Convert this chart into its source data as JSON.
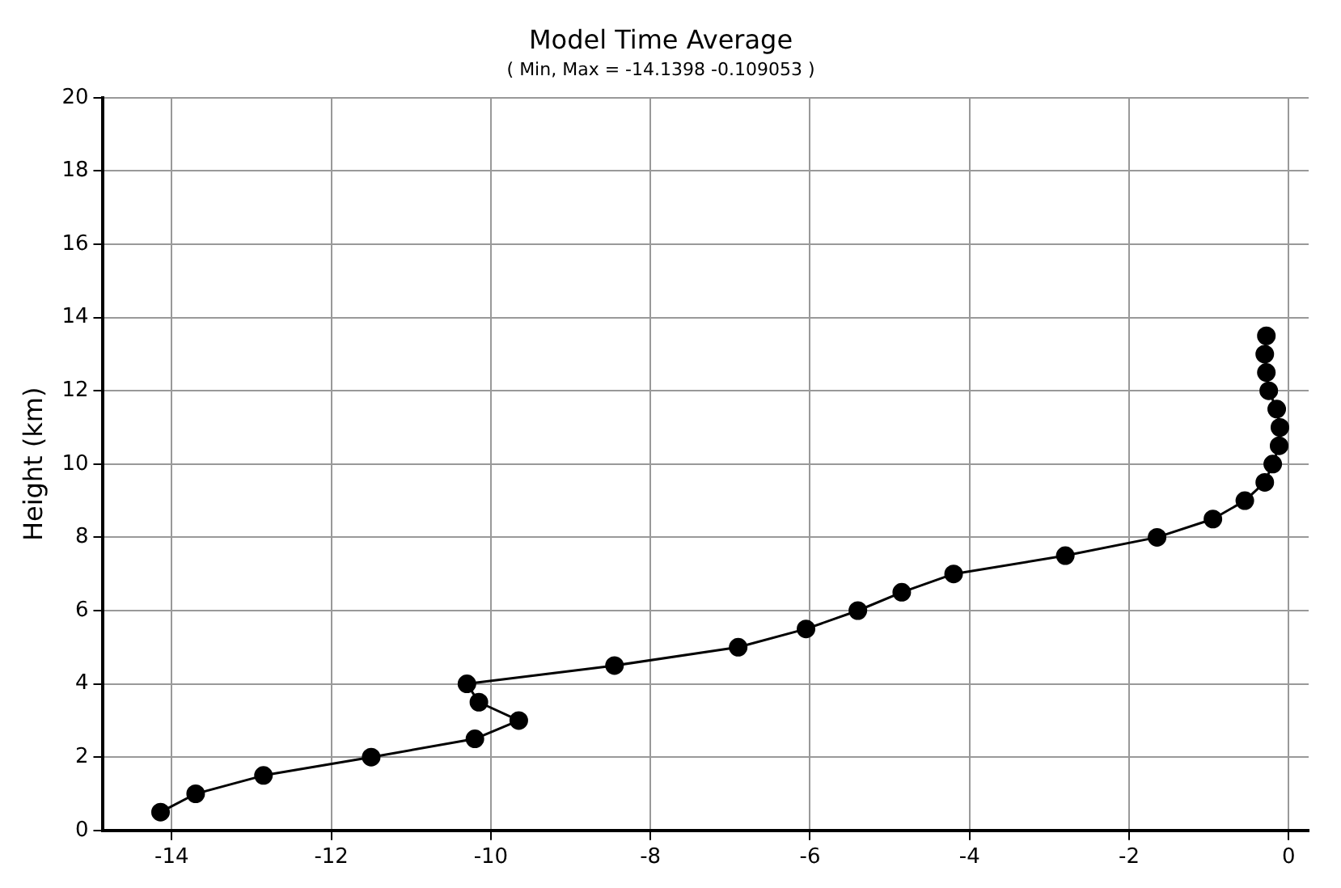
{
  "chart_data": {
    "type": "line",
    "title": "Model Time Average",
    "subtitle": "( Min, Max = -14.1398 -0.109053 )",
    "ylabel": "Height (km)",
    "x": [
      -14.14,
      -13.7,
      -12.85,
      -11.5,
      -10.2,
      -9.65,
      -10.15,
      -10.3,
      -8.45,
      -6.9,
      -6.05,
      -5.4,
      -4.85,
      -4.2,
      -2.8,
      -1.65,
      -0.95,
      -0.55,
      -0.3,
      -0.2,
      -0.12,
      -0.11,
      -0.15,
      -0.25,
      -0.28,
      -0.3,
      -0.28
    ],
    "series": [
      {
        "color": "#000000",
        "values": [
          0.5,
          1,
          1.5,
          2,
          2.5,
          3,
          3.5,
          4,
          4.5,
          5,
          5.5,
          6,
          6.5,
          7,
          7.5,
          8,
          8.5,
          9,
          9.5,
          10,
          10.5,
          11,
          11.5,
          12,
          12.5,
          13,
          13.5
        ]
      }
    ],
    "xlim": [
      -14.86,
      0.25
    ],
    "xticks": [
      -14,
      -12,
      -10,
      -8,
      -6,
      -4,
      -2,
      0
    ],
    "ylim": [
      0,
      20
    ],
    "yticks": [
      0,
      2,
      4,
      6,
      8,
      10,
      12,
      14,
      16,
      18,
      20
    ],
    "grid": true,
    "marker": "circle",
    "line_style": "solid",
    "legend": false
  }
}
